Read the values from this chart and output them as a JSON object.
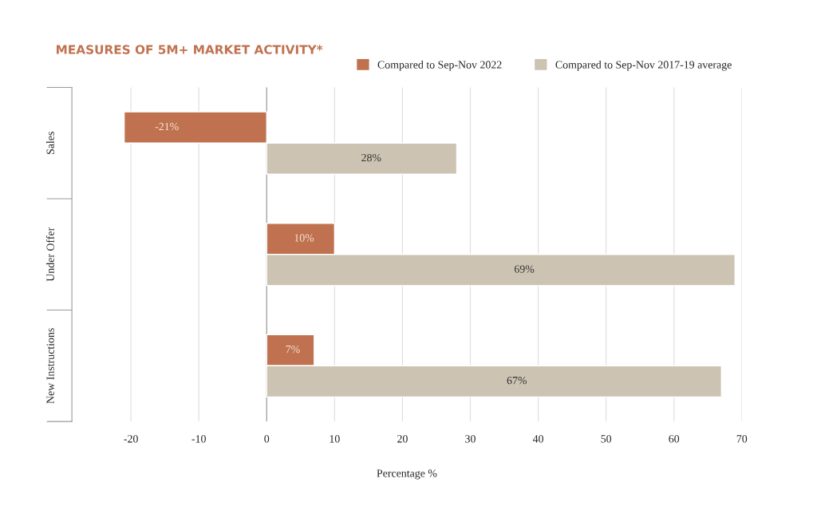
{
  "chart_data": {
    "type": "bar",
    "orientation": "horizontal",
    "title": "MEASURES OF 5M+ MARKET ACTIVITY*",
    "xlabel": "Percentage %",
    "categories": [
      "Sales",
      "Under Offer",
      "New Instructions"
    ],
    "series": [
      {
        "name": "Compared to Sep-Nov 2022",
        "color": "#c0714f",
        "values": [
          -21,
          10,
          7
        ],
        "value_labels": [
          "-21%",
          "10%",
          "7%"
        ]
      },
      {
        "name": "Compared to Sep-Nov 2017-19 average",
        "color": "#ccc3b2",
        "values": [
          28,
          69,
          67
        ],
        "value_labels": [
          "28%",
          "69%",
          "67%"
        ]
      }
    ],
    "xlim": [
      -28.7,
      70
    ],
    "xticks": [
      -20,
      -10,
      0,
      10,
      20,
      30,
      40,
      50,
      60,
      70
    ],
    "grid": "x",
    "legend": "top right"
  }
}
